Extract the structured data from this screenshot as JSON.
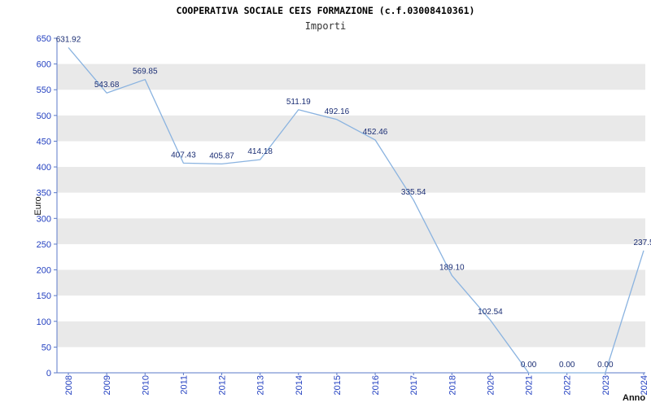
{
  "header": {
    "title": "COOPERATIVA SOCIALE CEIS FORMAZIONE (c.f.03008410361)",
    "subtitle": "Importi"
  },
  "chart_data": {
    "type": "line",
    "title": "COOPERATIVA SOCIALE CEIS FORMAZIONE (c.f.03008410361)",
    "subtitle": "Importi",
    "xlabel": "Anno",
    "ylabel": "Euro",
    "categories": [
      "2008",
      "2009",
      "2010",
      "2011",
      "2012",
      "2013",
      "2014",
      "2015",
      "2016",
      "2017",
      "2018",
      "2020",
      "2021",
      "2022",
      "2023",
      "2024"
    ],
    "values": [
      631.92,
      543.68,
      569.85,
      407.43,
      405.87,
      414.18,
      511.19,
      492.16,
      452.46,
      335.54,
      189.1,
      102.54,
      0.0,
      0.0,
      0.0,
      237.5
    ],
    "point_labels": [
      "631.92",
      "543.68",
      "569.85",
      "407.43",
      "405.87",
      "414.18",
      "511.19",
      "492.16",
      "452.46",
      "335.54",
      "189.10",
      "102.54",
      "0.00",
      "0.00",
      "0.00",
      "237.5"
    ],
    "ylim": [
      0,
      650
    ],
    "ytick_step": 50,
    "grid": "alternating-horizontal-bands",
    "legend": "none",
    "colors": {
      "line": "#8ab3e0",
      "band": "#e9e9e9",
      "axis": "#5b79c9",
      "tick_text": "#2340c0",
      "data_label": "#1b2e74",
      "axis_title": "#111111",
      "background": "#ffffff"
    }
  }
}
